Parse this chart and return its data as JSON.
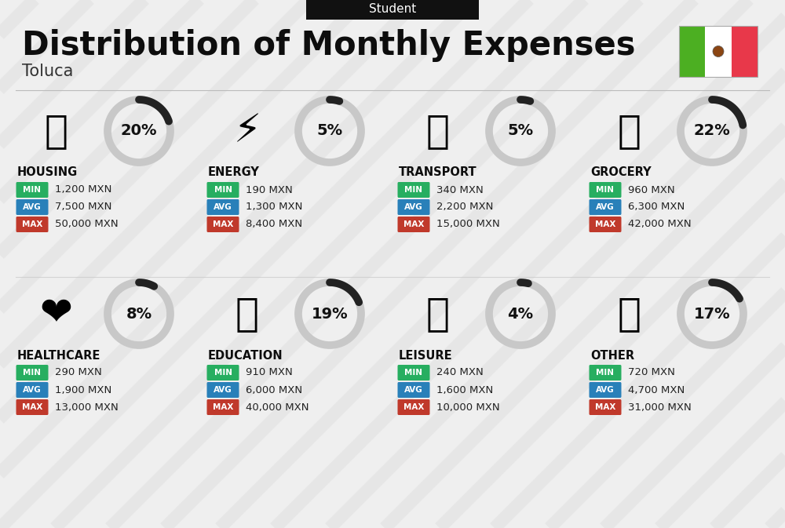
{
  "title": "Distribution of Monthly Expenses",
  "subtitle": "Student",
  "location": "Toluca",
  "background_color": "#efefef",
  "categories": [
    {
      "name": "HOUSING",
      "percent": 20,
      "min": "1,200 MXN",
      "avg": "7,500 MXN",
      "max": "50,000 MXN",
      "icon": "🏢",
      "row": 0,
      "col": 0
    },
    {
      "name": "ENERGY",
      "percent": 5,
      "min": "190 MXN",
      "avg": "1,300 MXN",
      "max": "8,400 MXN",
      "icon": "⚡",
      "row": 0,
      "col": 1
    },
    {
      "name": "TRANSPORT",
      "percent": 5,
      "min": "340 MXN",
      "avg": "2,200 MXN",
      "max": "15,000 MXN",
      "icon": "🚌",
      "row": 0,
      "col": 2
    },
    {
      "name": "GROCERY",
      "percent": 22,
      "min": "960 MXN",
      "avg": "6,300 MXN",
      "max": "42,000 MXN",
      "icon": "🛒",
      "row": 0,
      "col": 3
    },
    {
      "name": "HEALTHCARE",
      "percent": 8,
      "min": "290 MXN",
      "avg": "1,900 MXN",
      "max": "13,000 MXN",
      "icon": "❤️",
      "row": 1,
      "col": 0
    },
    {
      "name": "EDUCATION",
      "percent": 19,
      "min": "910 MXN",
      "avg": "6,000 MXN",
      "max": "40,000 MXN",
      "icon": "🎓",
      "row": 1,
      "col": 1
    },
    {
      "name": "LEISURE",
      "percent": 4,
      "min": "240 MXN",
      "avg": "1,600 MXN",
      "max": "10,000 MXN",
      "icon": "🛍️",
      "row": 1,
      "col": 2
    },
    {
      "name": "OTHER",
      "percent": 17,
      "min": "720 MXN",
      "avg": "4,700 MXN",
      "max": "31,000 MXN",
      "icon": "💰",
      "row": 1,
      "col": 3
    }
  ],
  "color_min": "#27ae60",
  "color_avg": "#2980b9",
  "color_max": "#c0392b",
  "color_dark": "#111111",
  "color_gray": "#c8c8c8",
  "color_ring_dark": "#222222",
  "flag_green": "#4caf22",
  "flag_white": "#ffffff",
  "flag_red": "#e8384a",
  "stripe_color": "#d8d8d8",
  "stripe_alpha": 0.35
}
